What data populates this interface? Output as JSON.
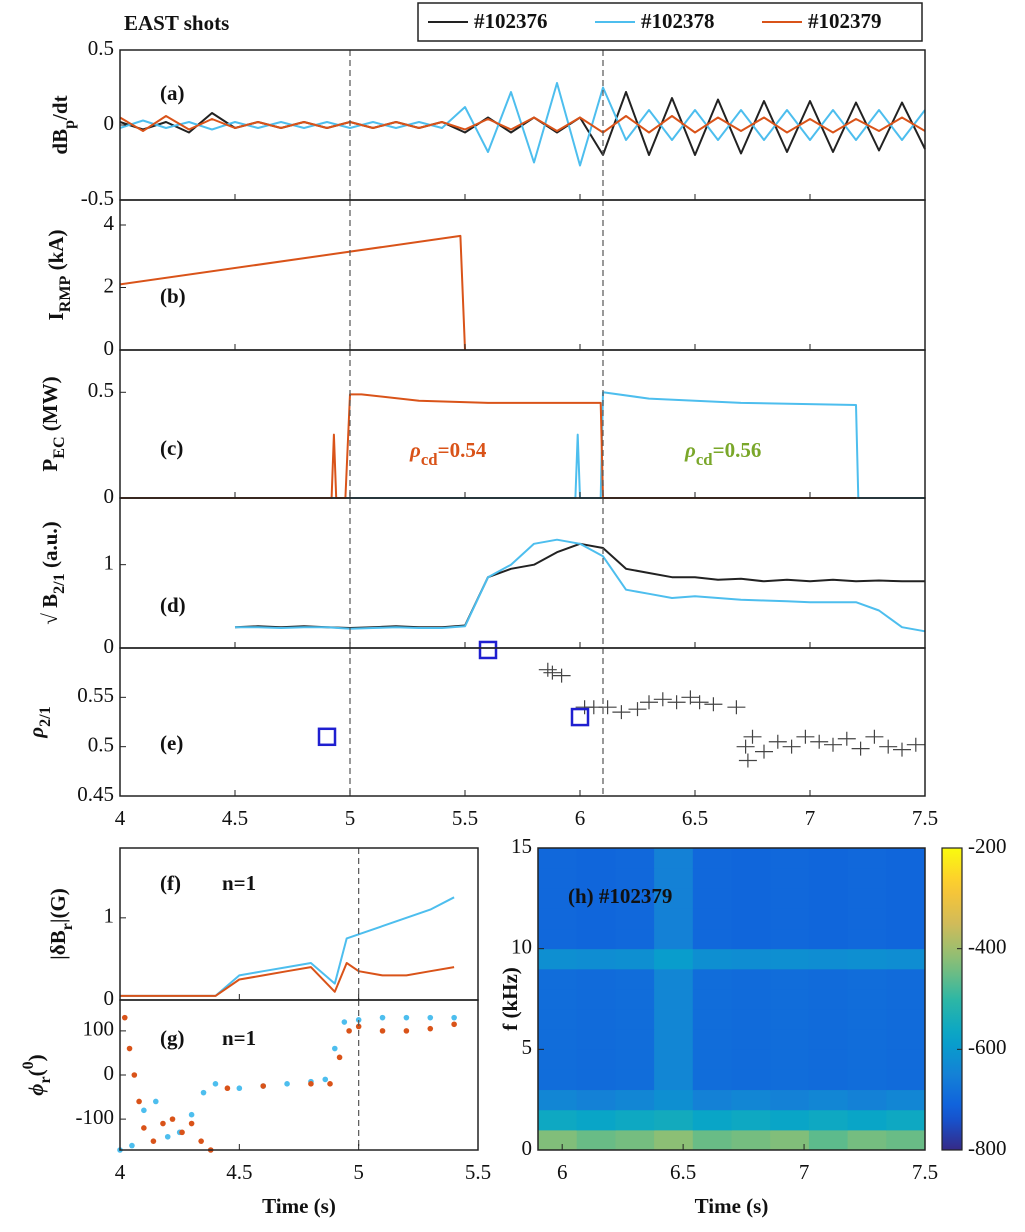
{
  "chart_data": [
    {
      "type": "line",
      "title": "EAST shots",
      "label": "(a)",
      "ylabel": [
        {
          "text": "dB"
        },
        {
          "text": "p",
          "sub": true
        },
        {
          "text": "/dt"
        }
      ],
      "xlim": [
        4,
        7.5
      ],
      "ylim": [
        -0.5,
        0.5
      ],
      "yticks": [
        -0.5,
        0,
        0.5
      ],
      "vlines": [
        5,
        6.1
      ],
      "x": [
        4.0,
        4.1,
        4.2,
        4.3,
        4.4,
        4.5,
        4.6,
        4.7,
        4.8,
        4.9,
        5.0,
        5.1,
        5.2,
        5.3,
        5.4,
        5.5,
        5.6,
        5.7,
        5.8,
        5.9,
        6.0,
        6.1,
        6.2,
        6.3,
        6.4,
        6.5,
        6.6,
        6.7,
        6.8,
        6.9,
        7.0,
        7.1,
        7.2,
        7.3,
        7.4,
        7.5
      ],
      "series": [
        {
          "name": "#102376",
          "color": "#222222",
          "values": [
            0.02,
            -0.03,
            0.02,
            -0.05,
            0.08,
            -0.02,
            0.02,
            -0.02,
            0.02,
            -0.02,
            0.02,
            -0.02,
            0.02,
            -0.02,
            0.02,
            -0.05,
            0.05,
            -0.05,
            0.05,
            -0.05,
            0.05,
            -0.2,
            0.22,
            -0.2,
            0.18,
            -0.2,
            0.17,
            -0.19,
            0.16,
            -0.18,
            0.16,
            -0.18,
            0.15,
            -0.17,
            0.15,
            -0.16
          ]
        },
        {
          "name": "#102378",
          "color": "#4dbeee",
          "values": [
            -0.02,
            0.03,
            -0.02,
            0.02,
            -0.03,
            0.02,
            -0.02,
            0.02,
            -0.02,
            0.02,
            -0.02,
            0.02,
            -0.02,
            0.02,
            -0.02,
            0.12,
            -0.18,
            0.22,
            -0.25,
            0.28,
            -0.27,
            0.25,
            -0.1,
            0.1,
            -0.1,
            0.1,
            -0.1,
            0.1,
            -0.1,
            0.1,
            -0.1,
            0.1,
            -0.1,
            0.1,
            -0.1,
            0.1
          ]
        },
        {
          "name": "#102379",
          "color": "#d95319",
          "values": [
            0.05,
            -0.04,
            0.06,
            -0.03,
            0.04,
            -0.02,
            0.02,
            -0.02,
            0.02,
            -0.02,
            0.02,
            -0.02,
            0.02,
            -0.02,
            0.02,
            -0.03,
            0.04,
            -0.03,
            0.05,
            -0.04,
            0.05,
            -0.05,
            0.06,
            -0.05,
            0.06,
            -0.05,
            0.05,
            -0.04,
            0.05,
            -0.05,
            0.04,
            -0.05,
            0.04,
            -0.04,
            0.05,
            -0.04
          ]
        }
      ]
    },
    {
      "type": "line",
      "label": "(b)",
      "ylabel": [
        {
          "text": "I"
        },
        {
          "text": "RMP",
          "sub": true
        },
        {
          "text": " (kA)"
        }
      ],
      "xlim": [
        4,
        7.5
      ],
      "ylim": [
        0,
        4.8
      ],
      "yticks": [
        0,
        2,
        4
      ],
      "vlines": [
        5,
        6.1
      ],
      "series": [
        {
          "color": "#d95319",
          "x": [
            4.0,
            5.48,
            5.5
          ],
          "values": [
            2.1,
            3.65,
            0
          ]
        }
      ]
    },
    {
      "type": "line",
      "label": "(c)",
      "ylabel": [
        {
          "text": "P"
        },
        {
          "text": "EC",
          "sub": true
        },
        {
          "text": " (MW)"
        }
      ],
      "xlim": [
        4,
        7.5
      ],
      "ylim": [
        0,
        0.7
      ],
      "yticks": [
        0,
        0.5
      ],
      "vlines": [
        5,
        6.1
      ],
      "annotations": [
        {
          "color": "#d95319",
          "parts": [
            {
              "text": "ρ",
              "italic": true
            },
            {
              "text": "cd",
              "sub": true
            },
            {
              "text": "=0.54"
            }
          ]
        },
        {
          "color": "#7aa72a",
          "parts": [
            {
              "text": "ρ",
              "italic": true
            },
            {
              "text": "cd",
              "sub": true
            },
            {
              "text": "=0.56"
            }
          ]
        }
      ],
      "series": [
        {
          "color": "#4dbeee",
          "x": [
            4.0,
            5.98,
            5.99,
            6.0,
            6.09,
            6.1,
            6.3,
            6.7,
            7.2,
            7.21,
            7.5
          ],
          "values": [
            0,
            0,
            0.3,
            0,
            0,
            0.5,
            0.47,
            0.45,
            0.44,
            0,
            0
          ]
        },
        {
          "color": "#d95319",
          "x": [
            4.0,
            4.92,
            4.93,
            4.94,
            4.98,
            5.0,
            5.05,
            5.3,
            5.6,
            6.09,
            6.1,
            7.2
          ],
          "values": [
            0,
            0,
            0.3,
            0,
            0,
            0.49,
            0.49,
            0.46,
            0.45,
            0.45,
            0,
            0
          ]
        }
      ]
    },
    {
      "type": "line",
      "label": "(d)",
      "ylabel": [
        {
          "text": "√ B"
        },
        {
          "text": "2/1",
          "sub": true
        },
        {
          "text": " (a.u.)"
        }
      ],
      "xlim": [
        4,
        7.5
      ],
      "ylim": [
        0,
        1.8
      ],
      "yticks": [
        0,
        1
      ],
      "vlines": [
        5,
        6.1
      ],
      "x": [
        4.5,
        4.6,
        4.7,
        4.8,
        4.9,
        5.0,
        5.1,
        5.2,
        5.3,
        5.4,
        5.5,
        5.6,
        5.7,
        5.8,
        5.9,
        6.0,
        6.1,
        6.2,
        6.3,
        6.4,
        6.5,
        6.6,
        6.7,
        6.8,
        6.9,
        7.0,
        7.1,
        7.2,
        7.3,
        7.4,
        7.5
      ],
      "series": [
        {
          "color": "#222222",
          "values": [
            0.25,
            0.26,
            0.25,
            0.26,
            0.25,
            0.24,
            0.25,
            0.26,
            0.25,
            0.25,
            0.27,
            0.85,
            0.95,
            1.0,
            1.15,
            1.25,
            1.2,
            0.95,
            0.9,
            0.85,
            0.85,
            0.82,
            0.83,
            0.8,
            0.82,
            0.8,
            0.82,
            0.8,
            0.81,
            0.8,
            0.8
          ]
        },
        {
          "color": "#4dbeee",
          "values": [
            0.25,
            0.25,
            0.24,
            0.25,
            0.25,
            0.23,
            0.24,
            0.25,
            0.24,
            0.24,
            0.26,
            0.85,
            1.0,
            1.25,
            1.3,
            1.25,
            1.1,
            0.7,
            0.65,
            0.6,
            0.62,
            0.6,
            0.58,
            0.57,
            0.56,
            0.55,
            0.55,
            0.55,
            0.45,
            0.25,
            0.2
          ]
        }
      ]
    },
    {
      "type": "scatter",
      "label": "(e)",
      "ylabel": [
        {
          "text": "ρ",
          "italic": true
        },
        {
          "text": "2/1",
          "sub": true
        }
      ],
      "xlim": [
        4,
        7.5
      ],
      "ylim": [
        0.45,
        0.6
      ],
      "yticks": [
        0.45,
        0.5,
        0.55
      ],
      "vlines": [
        5,
        6.1
      ],
      "xticks": [
        4,
        4.5,
        5,
        5.5,
        6,
        6.5,
        7,
        7.5
      ],
      "series": [
        {
          "marker": "plus",
          "color": "#444444",
          "x": [
            5.86,
            5.88,
            5.92,
            6.02,
            6.06,
            6.12,
            6.18,
            6.25,
            6.3,
            6.36,
            6.42,
            6.48,
            6.52,
            6.58,
            6.68,
            6.72,
            6.75,
            6.8,
            6.86,
            6.92,
            6.98,
            7.04,
            7.1,
            7.16,
            7.22,
            7.28,
            7.34,
            7.4,
            7.46,
            6.73
          ],
          "values": [
            0.578,
            0.575,
            0.572,
            0.54,
            0.54,
            0.54,
            0.535,
            0.538,
            0.545,
            0.548,
            0.545,
            0.55,
            0.545,
            0.543,
            0.54,
            0.5,
            0.51,
            0.495,
            0.505,
            0.5,
            0.51,
            0.505,
            0.502,
            0.508,
            0.498,
            0.51,
            0.5,
            0.497,
            0.502,
            0.486
          ]
        },
        {
          "marker": "square",
          "color": "#1f1fd0",
          "x": [
            4.9,
            5.6,
            6.0
          ],
          "values": [
            0.51,
            0.598,
            0.53
          ]
        }
      ]
    },
    {
      "type": "line",
      "label": "(f)",
      "annotation": "n=1",
      "ylabel": [
        {
          "text": "|δB"
        },
        {
          "text": "r",
          "sub": true
        },
        {
          "text": "|(G)"
        }
      ],
      "xlim": [
        4,
        5.5
      ],
      "ylim": [
        0,
        1.85
      ],
      "yticks": [
        0,
        1
      ],
      "vlines": [
        5
      ],
      "x": [
        4.0,
        4.2,
        4.4,
        4.5,
        4.6,
        4.7,
        4.8,
        4.9,
        4.95,
        5.0,
        5.1,
        5.2,
        5.3,
        5.4
      ],
      "series": [
        {
          "color": "#4dbeee",
          "values": [
            0.05,
            0.05,
            0.05,
            0.3,
            0.35,
            0.4,
            0.45,
            0.2,
            0.75,
            0.8,
            0.9,
            1.0,
            1.1,
            1.25
          ]
        },
        {
          "color": "#d95319",
          "values": [
            0.05,
            0.05,
            0.05,
            0.25,
            0.3,
            0.35,
            0.4,
            0.1,
            0.45,
            0.35,
            0.3,
            0.3,
            0.35,
            0.4
          ]
        }
      ]
    },
    {
      "type": "scatter",
      "label": "(g)",
      "annotation": "n=1",
      "ylabel": [
        {
          "text": "ϕ",
          "italic": true
        },
        {
          "text": "r",
          "sub": true
        },
        {
          "text": "("
        },
        {
          "text": "0",
          "sup": true
        },
        {
          "text": ")"
        }
      ],
      "xlabel": "Time (s)",
      "xlim": [
        4,
        5.5
      ],
      "ylim": [
        -170,
        170
      ],
      "yticks": [
        -100,
        0,
        100
      ],
      "xticks": [
        4,
        4.5,
        5,
        5.5
      ],
      "vlines": [
        5
      ],
      "series": [
        {
          "marker": "dot",
          "color": "#4dbeee",
          "x": [
            4.0,
            4.05,
            4.1,
            4.15,
            4.2,
            4.25,
            4.3,
            4.35,
            4.4,
            4.5,
            4.6,
            4.7,
            4.8,
            4.86,
            4.9,
            4.94,
            5.0,
            5.1,
            5.2,
            5.3,
            5.4
          ],
          "values": [
            -170,
            -160,
            -80,
            -60,
            -140,
            -130,
            -90,
            -40,
            -20,
            -30,
            -25,
            -20,
            -15,
            -10,
            60,
            120,
            125,
            130,
            130,
            130,
            130
          ]
        },
        {
          "marker": "dot",
          "color": "#d95319",
          "x": [
            4.02,
            4.04,
            4.06,
            4.08,
            4.1,
            4.14,
            4.18,
            4.22,
            4.26,
            4.3,
            4.34,
            4.38,
            4.45,
            4.6,
            4.8,
            4.88,
            4.92,
            4.96,
            5.0,
            5.1,
            5.2,
            5.3,
            5.4
          ],
          "values": [
            130,
            60,
            0,
            -60,
            -120,
            -150,
            -110,
            -100,
            -130,
            -110,
            -150,
            -170,
            -30,
            -25,
            -20,
            -20,
            40,
            100,
            110,
            100,
            100,
            105,
            115
          ]
        }
      ]
    },
    {
      "type": "heatmap",
      "label": "(h) #102379",
      "colormap": "parula",
      "ylabel": [
        {
          "text": "f (kHz)"
        }
      ],
      "xlabel": "Time (s)",
      "xlim": [
        5.9,
        7.5
      ],
      "ylim": [
        0,
        15
      ],
      "xticks": [
        6,
        6.5,
        7,
        7.5
      ],
      "yticks": [
        0,
        5,
        10,
        15
      ],
      "x": [
        5.9,
        6.06,
        6.22,
        6.38,
        6.54,
        6.7,
        6.86,
        7.02,
        7.18,
        7.34,
        7.5
      ],
      "y": [
        0,
        1,
        2,
        3,
        4,
        5,
        6,
        7,
        8,
        9,
        10,
        11,
        12,
        13,
        14,
        15
      ],
      "z": [
        [
          -430,
          -450,
          -440,
          -420,
          -450,
          -440,
          -430,
          -460,
          -440,
          -450
        ],
        [
          -560,
          -570,
          -560,
          -550,
          -570,
          -560,
          -570,
          -560,
          -570,
          -560
        ],
        [
          -640,
          -650,
          -640,
          -620,
          -650,
          -640,
          -650,
          -640,
          -650,
          -640
        ],
        [
          -690,
          -695,
          -690,
          -640,
          -690,
          -695,
          -690,
          -695,
          -690,
          -695
        ],
        [
          -690,
          -695,
          -690,
          -640,
          -690,
          -695,
          -690,
          -695,
          -690,
          -695
        ],
        [
          -690,
          -695,
          -690,
          -640,
          -690,
          -695,
          -690,
          -695,
          -690,
          -695
        ],
        [
          -690,
          -695,
          -690,
          -640,
          -690,
          -695,
          -690,
          -695,
          -690,
          -695
        ],
        [
          -690,
          -695,
          -690,
          -640,
          -690,
          -695,
          -690,
          -695,
          -690,
          -695
        ],
        [
          -690,
          -695,
          -690,
          -640,
          -690,
          -695,
          -690,
          -695,
          -690,
          -695
        ],
        [
          -620,
          -625,
          -620,
          -590,
          -620,
          -625,
          -620,
          -625,
          -620,
          -625
        ],
        [
          -700,
          -705,
          -700,
          -650,
          -700,
          -705,
          -700,
          -705,
          -700,
          -705
        ],
        [
          -700,
          -705,
          -700,
          -650,
          -700,
          -705,
          -700,
          -705,
          -700,
          -705
        ],
        [
          -700,
          -705,
          -700,
          -650,
          -700,
          -705,
          -700,
          -705,
          -700,
          -705
        ],
        [
          -700,
          -705,
          -700,
          -650,
          -700,
          -705,
          -700,
          -705,
          -700,
          -705
        ],
        [
          -700,
          -705,
          -700,
          -650,
          -700,
          -705,
          -700,
          -705,
          -700,
          -705
        ]
      ],
      "colorbar": {
        "lim": [
          -800,
          -200
        ],
        "ticks": [
          -800,
          -600,
          -400,
          -200
        ]
      }
    }
  ]
}
